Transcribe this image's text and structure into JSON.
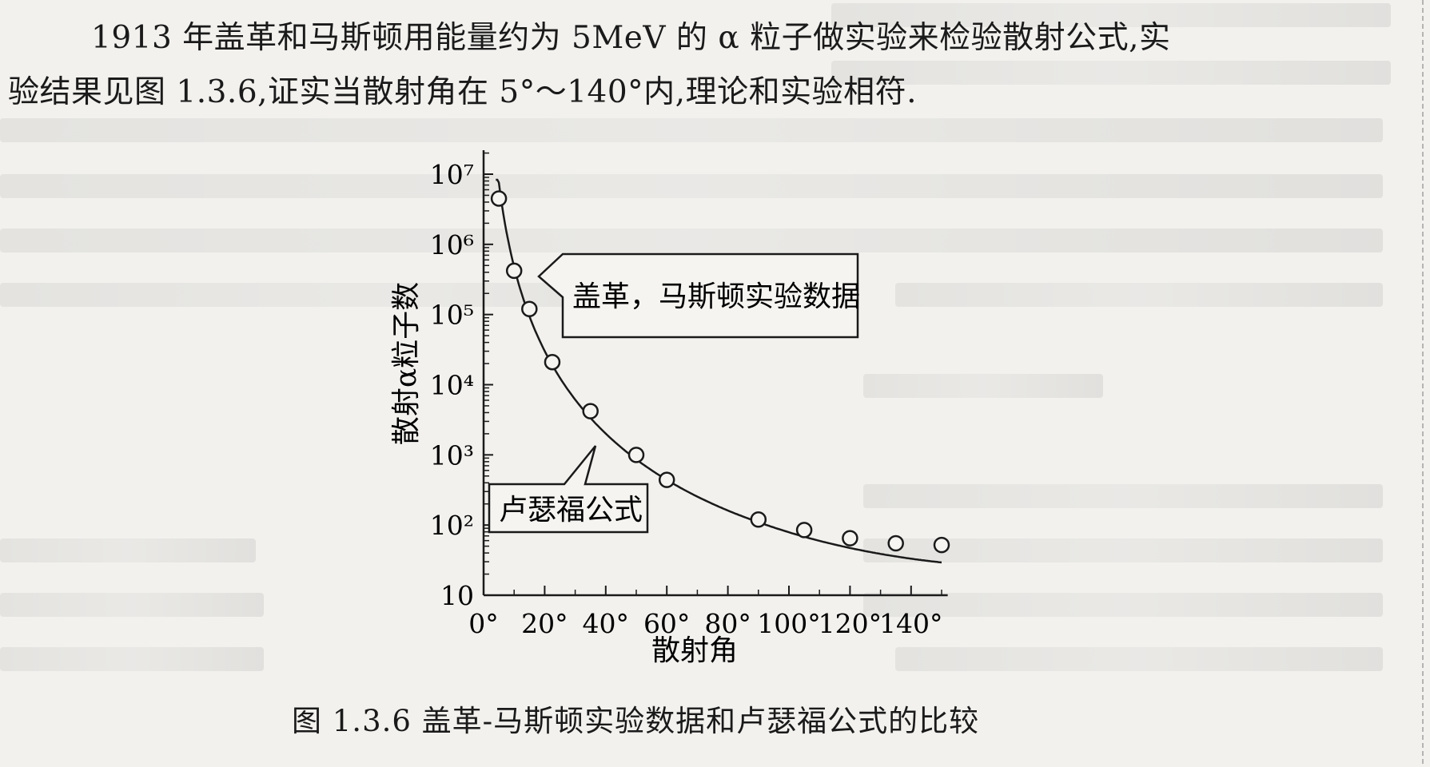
{
  "paragraph": {
    "line1": "1913 年盖革和马斯顿用能量约为 5MeV 的 α 粒子做实验来检验散射公式,实",
    "line2": "验结果见图 1.3.6,证实当散射角在 5°～140°内,理论和实验相符."
  },
  "chart_data": {
    "type": "scatter",
    "xlabel": "散射角",
    "ylabel": "散射α粒子数",
    "x_ticks": [
      "0°",
      "20°",
      "40°",
      "60°",
      "80°",
      "100°",
      "120°",
      "140°"
    ],
    "y_ticks": [
      "10",
      "10²",
      "10³",
      "10⁴",
      "10⁵",
      "10⁶",
      "10⁷"
    ],
    "y_scale": "log",
    "xlim": [
      0,
      150
    ],
    "ylim": [
      10,
      20000000
    ],
    "series": [
      {
        "name": "盖革，马斯顿实验数据",
        "x": [
          5,
          10,
          15,
          22.5,
          35,
          50,
          60,
          90,
          105,
          120,
          135,
          150
        ],
        "y": [
          4500000,
          420000,
          120000,
          21000,
          4200,
          1000,
          440,
          120,
          85,
          65,
          55,
          52
        ]
      }
    ],
    "annotations": [
      "盖革，马斯顿实验数据",
      "卢瑟福公式"
    ]
  },
  "caption": "图 1.3.6   盖革-马斯顿实验数据和卢瑟福公式的比较"
}
